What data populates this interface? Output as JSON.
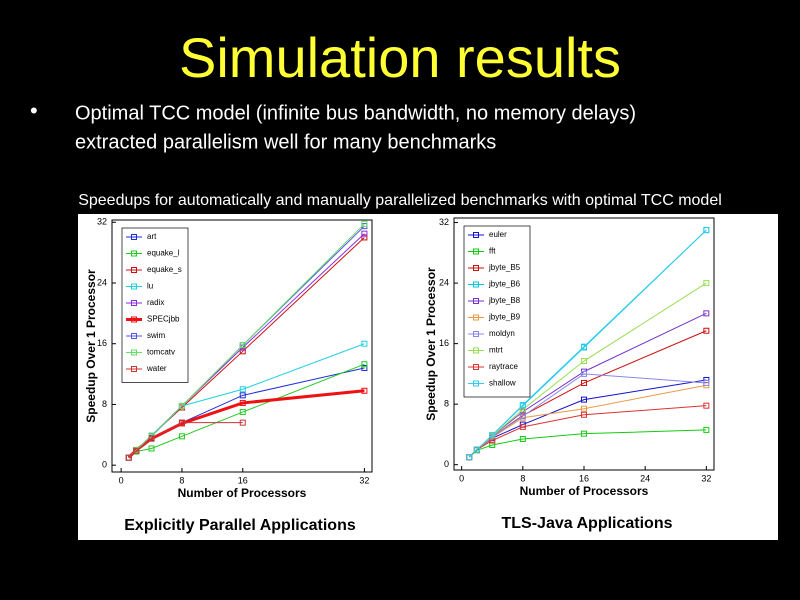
{
  "slide": {
    "title": "Simulation results",
    "bullet": [
      "Optimal TCC model (infinite bus bandwidth, no memory delays)",
      "extracted parallelism well for many benchmarks"
    ],
    "caption": "Speedups for automatically and manually parallelized benchmarks with optimal TCC model"
  },
  "chart_data": [
    {
      "type": "line",
      "title": "Explicitly Parallel Applications",
      "x_label": "Number of Processors",
      "y_label": "Speedup Over 1 Processor",
      "x": [
        1,
        2,
        4,
        8,
        16,
        32
      ],
      "xlim": [
        -1.2,
        33
      ],
      "xticks": [
        0,
        8,
        16,
        32
      ],
      "ylim": [
        -0.9,
        32.3
      ],
      "yticks": [
        0,
        8,
        16,
        24,
        32
      ],
      "grid": false,
      "series": [
        {
          "name": "art",
          "color": "#1f2fd6",
          "values": [
            1,
            1.9,
            3.6,
            5.6,
            9.2,
            12.8
          ]
        },
        {
          "name": "equake_l",
          "color": "#22cc22",
          "values": [
            1,
            1.8,
            2.2,
            3.8,
            7.0,
            13.3
          ]
        },
        {
          "name": "equake_s",
          "color": "#cc1111",
          "values": [
            1,
            2,
            3.9,
            7.6,
            15,
            30
          ]
        },
        {
          "name": "lu",
          "color": "#22d0e0",
          "values": [
            1,
            2,
            3.8,
            7.8,
            10,
            16
          ]
        },
        {
          "name": "radix",
          "color": "#8a2be2",
          "values": [
            1,
            2,
            3.9,
            7.8,
            15.5,
            30.5
          ]
        },
        {
          "name": "SPECjbb",
          "color": "#ee1111",
          "line_width": 3,
          "values": [
            1,
            2,
            3.5,
            5.5,
            8.2,
            9.8
          ]
        },
        {
          "name": "swim",
          "color": "#5555ee",
          "values": [
            1,
            2,
            3.9,
            7.8,
            15.8,
            31.5
          ]
        },
        {
          "name": "tomcatv",
          "color": "#66dd66",
          "values": [
            1,
            2,
            3.9,
            7.8,
            15.8,
            31.8
          ]
        },
        {
          "name": "water",
          "color": "#cc3333",
          "values": [
            1,
            1.9,
            3.5,
            5.6,
            5.6,
            null
          ]
        }
      ]
    },
    {
      "type": "line",
      "title": "TLS-Java Applications",
      "x_label": "Number of Processors",
      "y_label": "Speedup Over 1 Processor",
      "x": [
        1,
        2,
        4,
        8,
        16,
        32
      ],
      "xlim": [
        -1,
        33
      ],
      "xticks": [
        0,
        8,
        16,
        24,
        32
      ],
      "ylim": [
        -0.7,
        32.6
      ],
      "yticks": [
        0,
        8,
        16,
        24,
        32
      ],
      "grid": false,
      "series": [
        {
          "name": "euler",
          "color": "#1111cc",
          "values": [
            1,
            2,
            3.5,
            5.3,
            8.6,
            11.2
          ]
        },
        {
          "name": "fft",
          "color": "#11cc11",
          "values": [
            1,
            1.9,
            2.6,
            3.4,
            4.1,
            4.6
          ]
        },
        {
          "name": "jbyte_B5",
          "color": "#cc1111",
          "values": [
            1,
            2,
            3.7,
            6.5,
            10.8,
            17.7
          ]
        },
        {
          "name": "jbyte_B6",
          "color": "#00c8e0",
          "values": [
            1,
            2,
            3.9,
            7.8,
            15.5,
            31
          ]
        },
        {
          "name": "jbyte_B8",
          "color": "#7733cc",
          "values": [
            1,
            2,
            3.8,
            7.0,
            12.3,
            20
          ]
        },
        {
          "name": "jbyte_B9",
          "color": "#ee9944",
          "values": [
            1,
            2,
            3.6,
            6.2,
            7.4,
            10.5
          ]
        },
        {
          "name": "moldyn",
          "color": "#8888ee",
          "values": [
            1,
            2,
            3.7,
            6.4,
            12,
            10.8
          ]
        },
        {
          "name": "mtrt",
          "color": "#99dd55",
          "values": [
            1,
            2,
            3.8,
            7.3,
            13.7,
            24
          ]
        },
        {
          "name": "raytrace",
          "color": "#dd3333",
          "values": [
            1,
            2,
            3.2,
            5,
            6.6,
            7.8
          ]
        },
        {
          "name": "shallow",
          "color": "#33ccee",
          "values": [
            1,
            2,
            3.9,
            7.9,
            15.6,
            31
          ]
        }
      ]
    }
  ]
}
